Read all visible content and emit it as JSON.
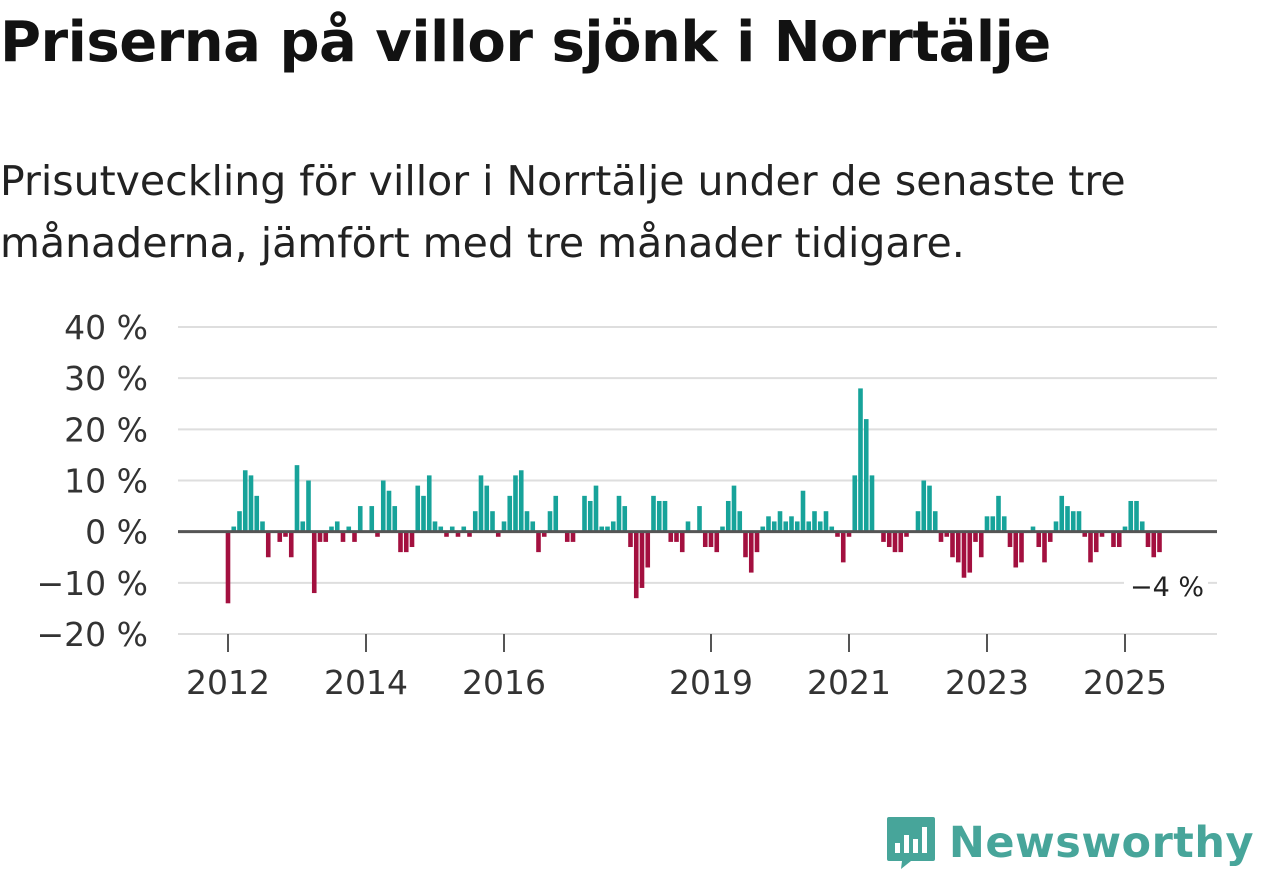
{
  "title": "Priserna på villor sjönk i Norrtälje",
  "subtitle": "Prisutveckling för villor i Norrtälje under de senaste tre månaderna, jämfört med tre månader tidigare.",
  "brand": {
    "name": "Newsworthy",
    "icon": "newsworthy-logo-icon"
  },
  "colors": {
    "positive": "#17a39a",
    "negative": "#a3103f",
    "grid": "#dedede",
    "zero": "#555555"
  },
  "chart_data": {
    "type": "bar",
    "title": "Priserna på villor sjönk i Norrtälje",
    "xlabel": "",
    "ylabel": "",
    "ylim": [
      -20,
      40
    ],
    "yticks": [
      {
        "value": 40,
        "label": "40 %"
      },
      {
        "value": 30,
        "label": "30 %"
      },
      {
        "value": 20,
        "label": "20 %"
      },
      {
        "value": 10,
        "label": "10 %"
      },
      {
        "value": 0,
        "label": "0 %"
      },
      {
        "value": -10,
        "label": "−10 %"
      },
      {
        "value": -20,
        "label": "−20 %"
      }
    ],
    "xticks": [
      {
        "year": 2012,
        "label": "2012"
      },
      {
        "year": 2014,
        "label": "2014"
      },
      {
        "year": 2016,
        "label": "2016"
      },
      {
        "year": 2019,
        "label": "2019"
      },
      {
        "year": 2021,
        "label": "2021"
      },
      {
        "year": 2023,
        "label": "2023"
      },
      {
        "year": 2025,
        "label": "2025"
      }
    ],
    "start": {
      "year": 2012,
      "month": 1
    },
    "last_value_label": "−4 %",
    "values": [
      -14,
      1,
      4,
      12,
      11,
      7,
      2,
      -5,
      0,
      -2,
      -1,
      -5,
      13,
      2,
      10,
      -12,
      -2,
      -2,
      1,
      2,
      -2,
      1,
      -2,
      5,
      0,
      5,
      -1,
      10,
      8,
      5,
      -4,
      -4,
      -3,
      9,
      7,
      11,
      2,
      1,
      -1,
      1,
      -1,
      1,
      -1,
      4,
      11,
      9,
      4,
      -1,
      2,
      7,
      11,
      12,
      4,
      2,
      -4,
      -1,
      4,
      7,
      0,
      -2,
      -2,
      0,
      7,
      6,
      9,
      1,
      1,
      2,
      7,
      5,
      -3,
      -13,
      -11,
      -7,
      7,
      6,
      6,
      -2,
      -2,
      -4,
      2,
      0,
      5,
      -3,
      -3,
      -4,
      1,
      6,
      9,
      4,
      -5,
      -8,
      -4,
      1,
      3,
      2,
      4,
      2,
      3,
      2,
      8,
      2,
      4,
      2,
      4,
      1,
      -1,
      -6,
      -1,
      11,
      28,
      22,
      11,
      0,
      -2,
      -3,
      -4,
      -4,
      -1,
      0,
      4,
      10,
      9,
      4,
      -2,
      -1,
      -5,
      -6,
      -9,
      -8,
      -2,
      -5,
      3,
      3,
      7,
      3,
      -3,
      -7,
      -6,
      0,
      1,
      -3,
      -6,
      -2,
      2,
      7,
      5,
      4,
      4,
      -1,
      -6,
      -4,
      -1,
      0,
      -3,
      -3,
      1,
      6,
      6,
      2,
      -3,
      -5,
      -4
    ]
  }
}
